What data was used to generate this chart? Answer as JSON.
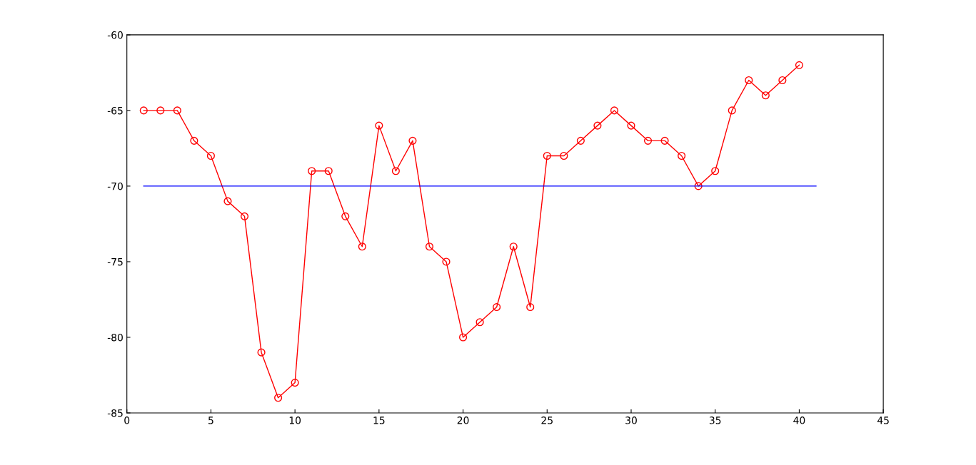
{
  "chart_data": {
    "type": "line",
    "xlim": [
      0,
      45
    ],
    "xticks": [
      0,
      5,
      10,
      15,
      20,
      25,
      30,
      35,
      40,
      45
    ],
    "ylim": [
      -85,
      -60
    ],
    "yticks": [
      -85,
      -80,
      -75,
      -70,
      -65,
      -60
    ],
    "grid": false,
    "legend": false,
    "series": [
      {
        "color": "#ff0000",
        "marker": "circle",
        "x": [
          1,
          2,
          3,
          4,
          5,
          6,
          7,
          8,
          9,
          10,
          11,
          12,
          13,
          14,
          15,
          16,
          17,
          18,
          19,
          20,
          21,
          22,
          23,
          24,
          25,
          26,
          27,
          28,
          29,
          30,
          31,
          32,
          33,
          34,
          35,
          36,
          37,
          38,
          39,
          40
        ],
        "values": [
          -65,
          -65,
          -65,
          -67,
          -68,
          -71,
          -72,
          -81,
          -84,
          -83,
          -69,
          -69,
          -72,
          -74,
          -66,
          -69,
          -67,
          -74,
          -75,
          -80,
          -79,
          -78,
          -74,
          -78,
          -68,
          -68,
          -67,
          -66,
          -65,
          -66,
          -67,
          -67,
          -68,
          -70,
          -69,
          -65,
          -63,
          -64,
          -63,
          -62
        ]
      },
      {
        "color": "#0000ff",
        "marker": "none",
        "x": [
          1,
          41
        ],
        "values": [
          -70,
          -70
        ]
      }
    ]
  }
}
